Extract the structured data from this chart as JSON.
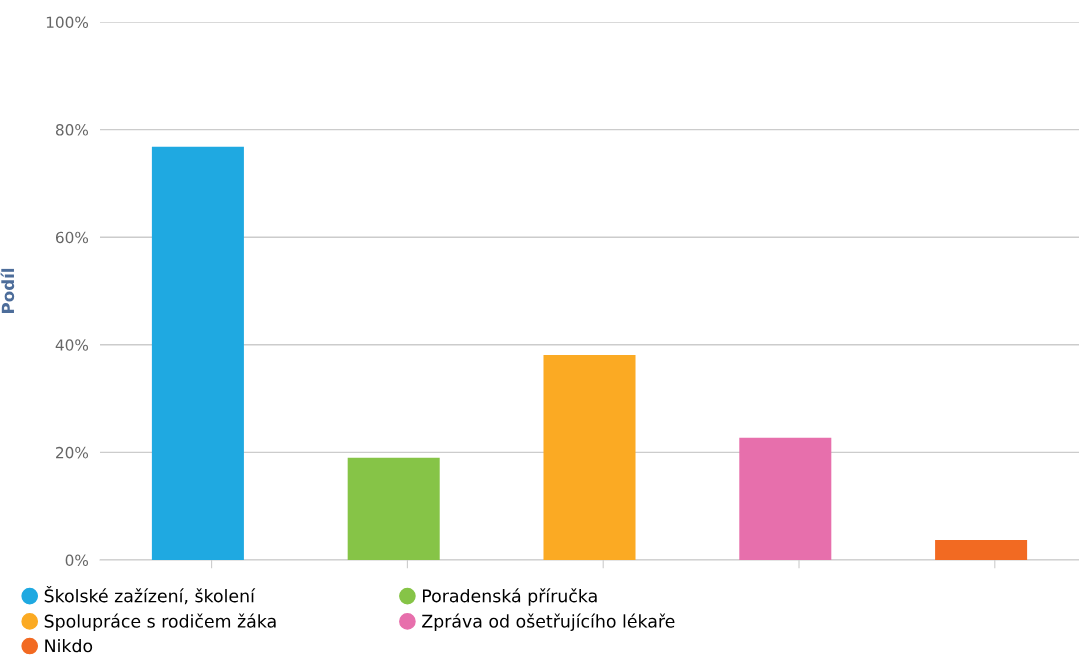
{
  "chart_data": {
    "type": "bar",
    "ylabel": "Podíl",
    "categories": [
      null,
      null,
      null,
      null,
      null
    ],
    "series": [
      {
        "name": "Školské zažízení, školení",
        "color": "#1fa9e1",
        "values": [
          76.8,
          null,
          null,
          null,
          null
        ]
      },
      {
        "name": "Poradenská příručka",
        "color": "#86c447",
        "values": [
          null,
          19.0,
          null,
          null,
          null
        ]
      },
      {
        "name": "Spolupráce s rodičem žáka",
        "color": "#fbaa23",
        "values": [
          null,
          null,
          38.1,
          null,
          null
        ]
      },
      {
        "name": "Zpráva od ošetřujícího lékaře",
        "color": "#e76fac",
        "values": [
          null,
          null,
          null,
          22.7,
          null
        ]
      },
      {
        "name": "Nikdo",
        "color": "#f26a22",
        "values": [
          null,
          null,
          null,
          null,
          3.7
        ]
      }
    ],
    "ylim": [
      0,
      100
    ],
    "yticks": [
      {
        "value": 0,
        "label": "0%"
      },
      {
        "value": 20,
        "label": "20%"
      },
      {
        "value": 40,
        "label": "40%"
      },
      {
        "value": 60,
        "label": "60%"
      },
      {
        "value": 80,
        "label": "80%"
      },
      {
        "value": 100,
        "label": "100%"
      }
    ],
    "grid": "y",
    "legend": "bottom"
  }
}
